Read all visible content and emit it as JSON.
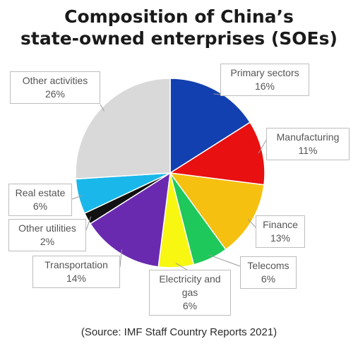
{
  "chart_data": {
    "type": "pie",
    "title_line1": "Composition of China’s",
    "title_line2": "state-owned enterprises (SOEs)",
    "slices": [
      {
        "label": "Primary sectors",
        "value_text": "16%",
        "value": 16,
        "color": "#1240b0"
      },
      {
        "label": "Manufacturing",
        "value_text": "11%",
        "value": 11,
        "color": "#e81010"
      },
      {
        "label": "Finance",
        "value_text": "13%",
        "value": 13,
        "color": "#f5c010"
      },
      {
        "label": "Telecoms",
        "value_text": "6%",
        "value": 6,
        "color": "#1ec85a"
      },
      {
        "label": "Electricity and gas",
        "label_lines": [
          "Electricity and",
          "gas"
        ],
        "value_text": "6%",
        "value": 6,
        "color": "#f7f712"
      },
      {
        "label": "Transportation",
        "value_text": "14%",
        "value": 14,
        "color": "#6a2ab0"
      },
      {
        "label": "Other utilities",
        "value_text": "2%",
        "value": 2,
        "color": "#111111"
      },
      {
        "label": "Real estate",
        "value_text": "6%",
        "value": 6,
        "color": "#1ab8ea"
      },
      {
        "label": "Other activities",
        "value_text": "26%",
        "value": 26,
        "color": "#d9d9d9"
      }
    ],
    "source": "(Source: IMF Staff Country Reports 2021)"
  }
}
